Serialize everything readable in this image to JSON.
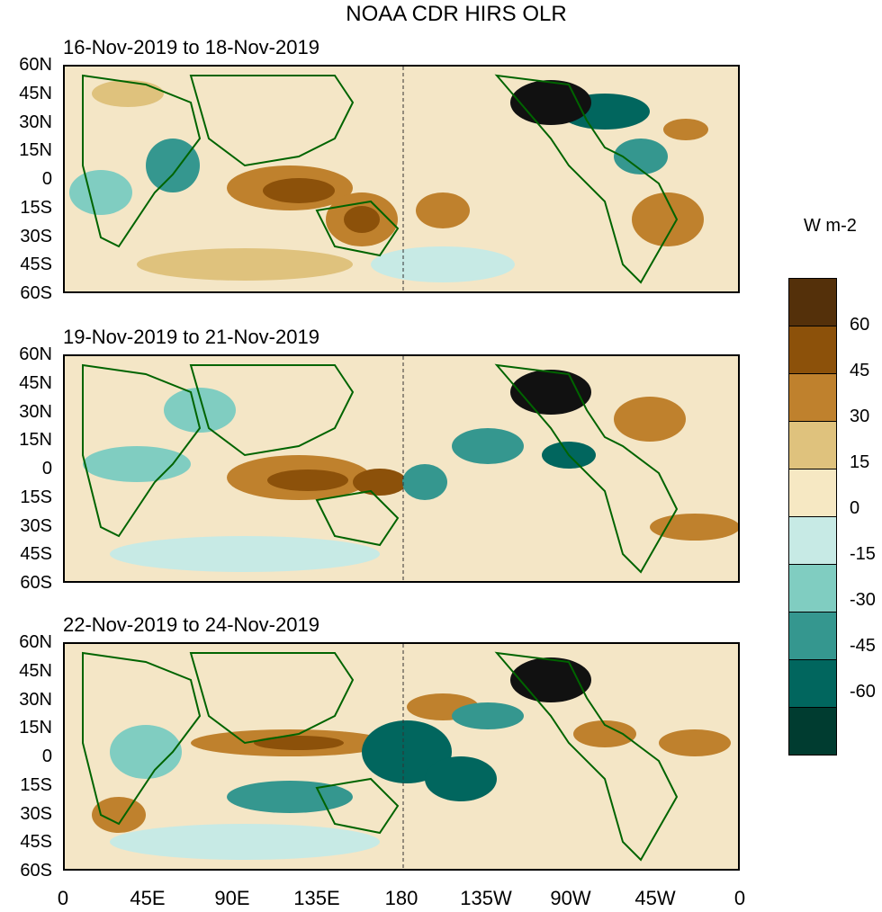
{
  "title": "NOAA CDR HIRS OLR",
  "panels": [
    {
      "label": "16-Nov-2019 to 18-Nov-2019"
    },
    {
      "label": "19-Nov-2019 to 21-Nov-2019"
    },
    {
      "label": "22-Nov-2019 to 24-Nov-2019"
    }
  ],
  "lat_labels": [
    "60N",
    "45N",
    "30N",
    "15N",
    "0",
    "15S",
    "30S",
    "45S",
    "60S"
  ],
  "lon_labels": [
    "0",
    "45E",
    "90E",
    "135E",
    "180",
    "135W",
    "90W",
    "45W",
    "0"
  ],
  "colorbar": {
    "units": "W m-2",
    "levels": [
      "60",
      "45",
      "30",
      "15",
      "0",
      "-15",
      "-30",
      "-45",
      "-60"
    ],
    "colors": [
      "#54300a",
      "#8c510a",
      "#bf812d",
      "#dfc27d",
      "#f6e8c3",
      "#c7eae5",
      "#80cdc1",
      "#35978f",
      "#01665e",
      "#003c30"
    ]
  },
  "chart_data": {
    "type": "map-anomaly-panels",
    "variable": "Outgoing Longwave Radiation anomaly",
    "units": "W m-2",
    "contour_levels": [
      -60,
      -45,
      -30,
      -15,
      0,
      15,
      30,
      45,
      60
    ],
    "lon_range": [
      0,
      360
    ],
    "lat_range": [
      -60,
      60
    ]
  },
  "map_colors": {
    "coast": "#006400",
    "dateline": "#333333"
  }
}
